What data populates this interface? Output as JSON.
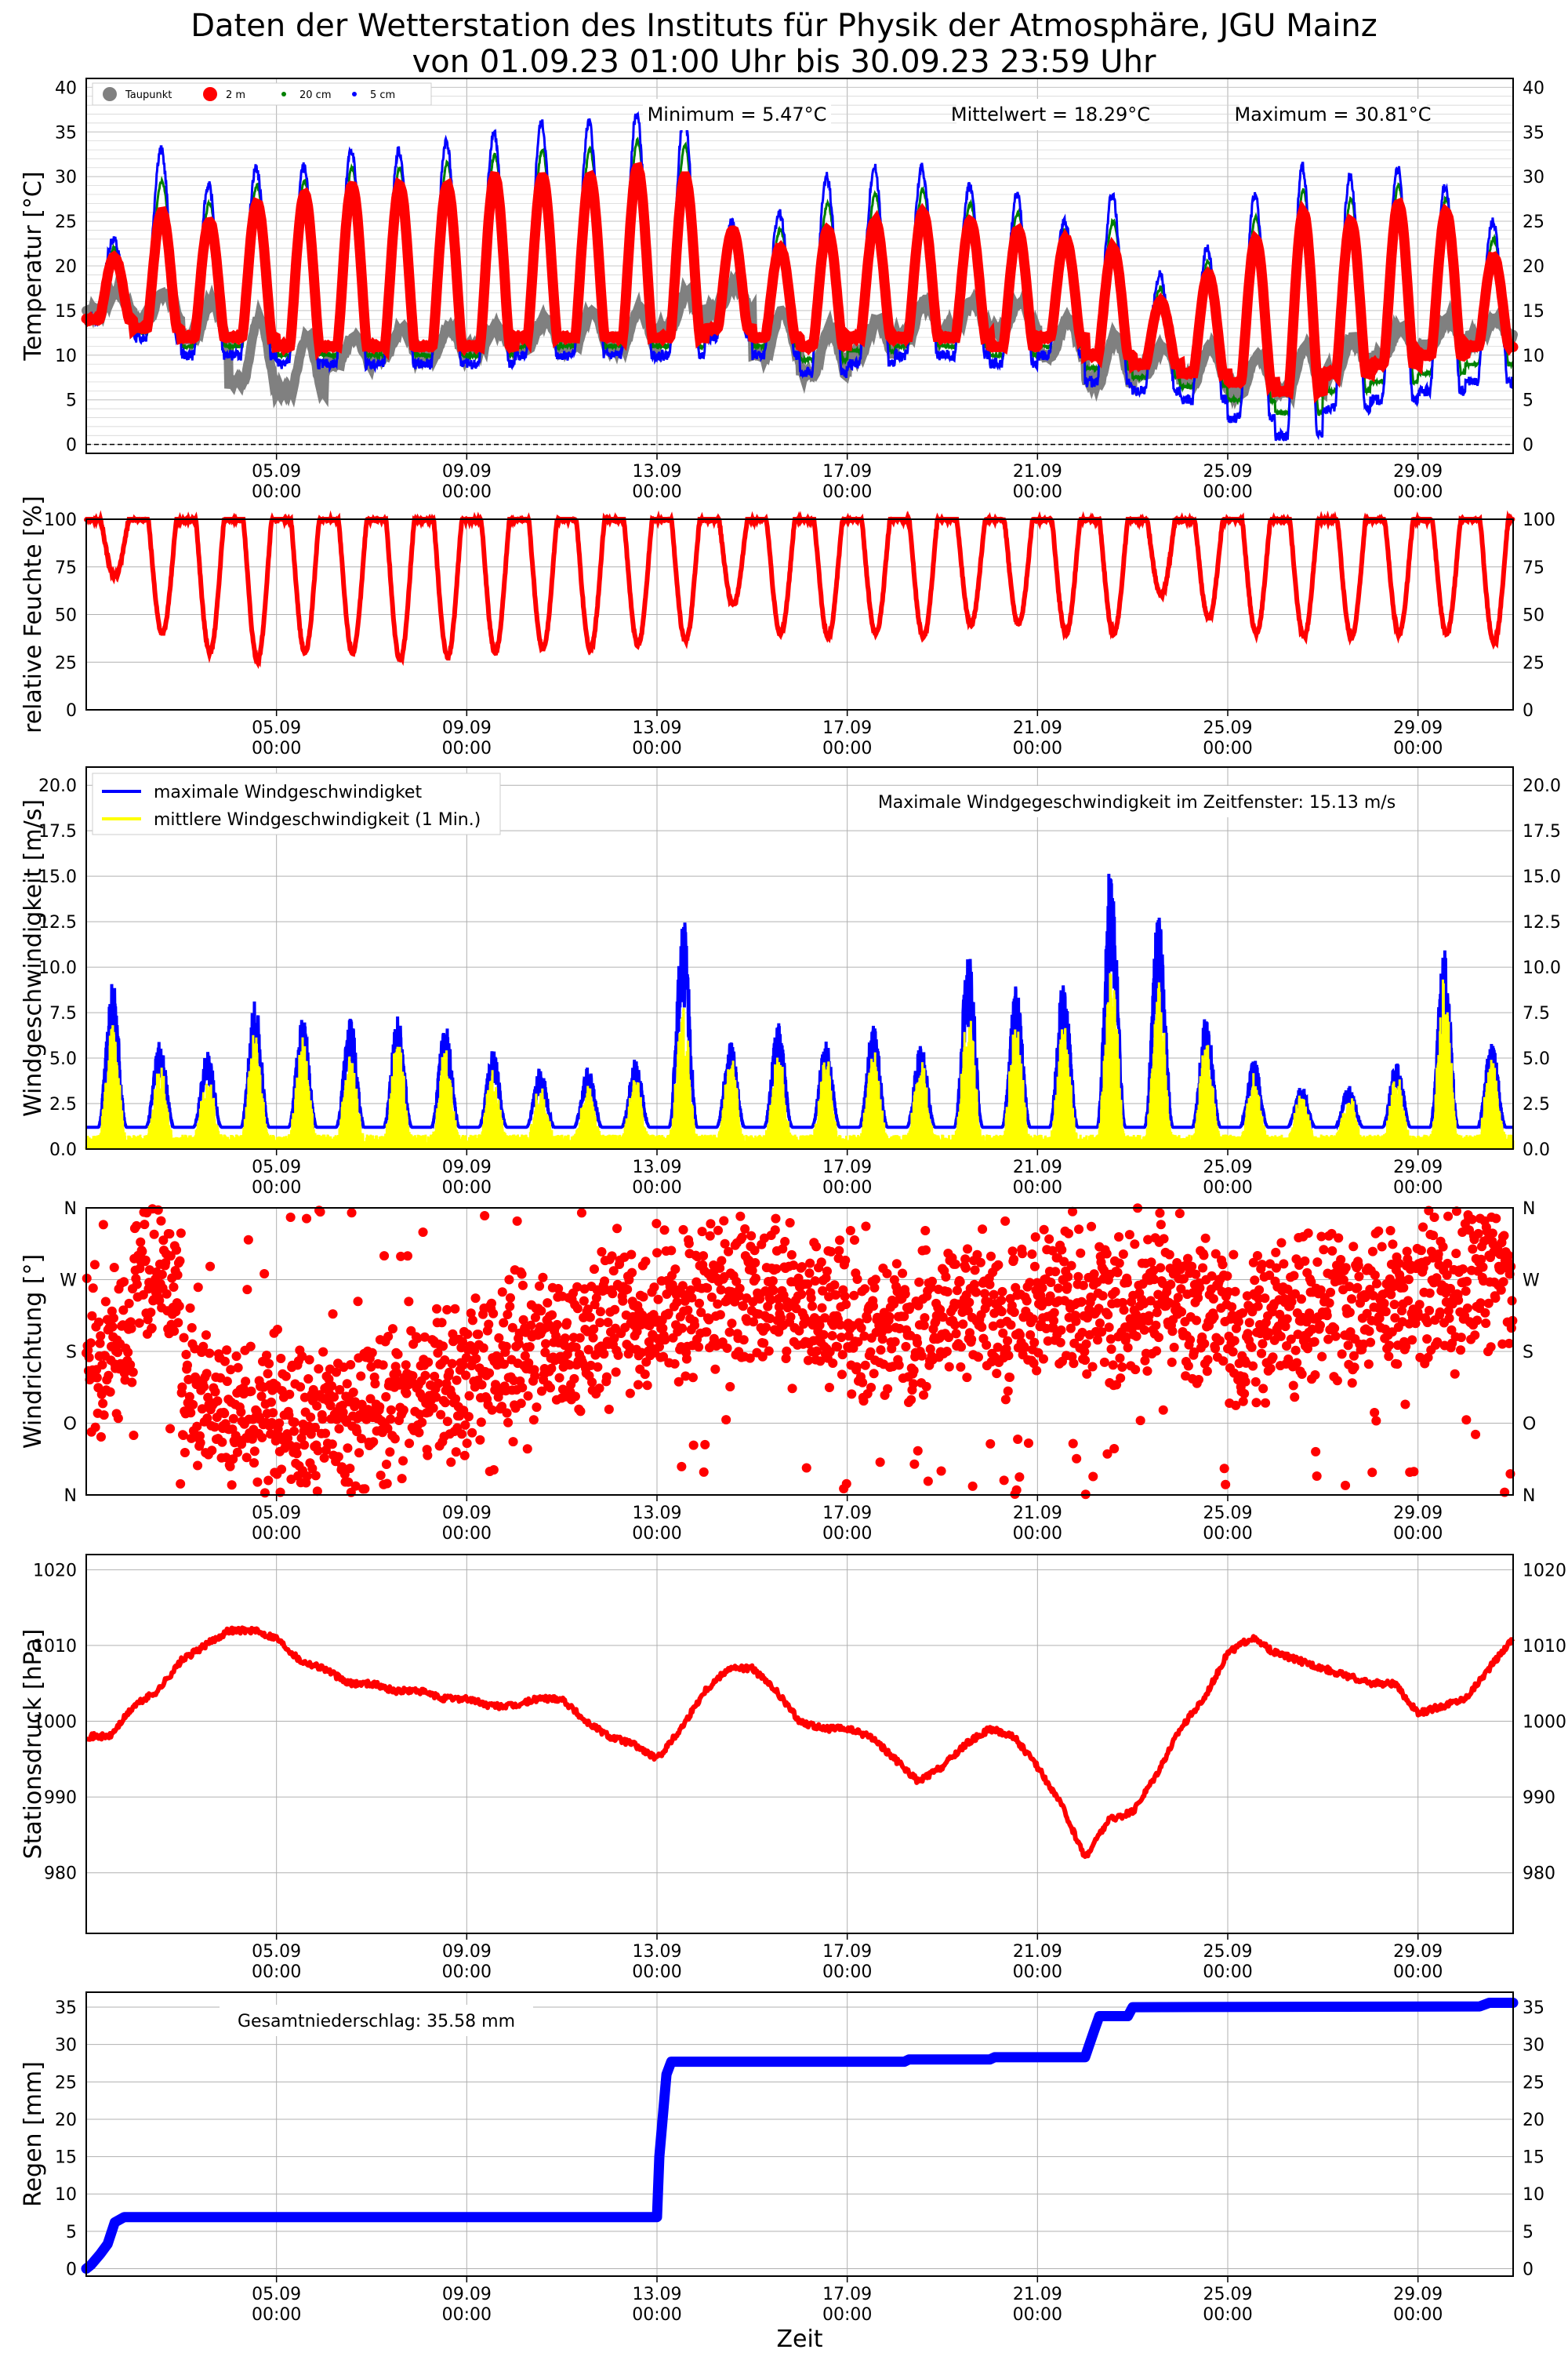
{
  "title_line1": "Daten der Wetterstation des Instituts für Physik der Atmosphäre, JGU Mainz",
  "title_line2": "von 01.09.23 01:00 Uhr bis 30.09.23 23:59 Uhr",
  "xlabel": "Zeit",
  "date_ticks": [
    {
      "date": "05.09",
      "time": "00:00",
      "day": 4.0
    },
    {
      "date": "09.09",
      "time": "00:00",
      "day": 8.0
    },
    {
      "date": "13.09",
      "time": "00:00",
      "day": 12.0
    },
    {
      "date": "17.09",
      "time": "00:00",
      "day": 16.0
    },
    {
      "date": "21.09",
      "time": "00:00",
      "day": 20.0
    },
    {
      "date": "25.09",
      "time": "00:00",
      "day": 24.0
    },
    {
      "date": "29.09",
      "time": "00:00",
      "day": 28.0
    }
  ],
  "colors": {
    "dewpoint": "#808080",
    "t2m": "#ff0000",
    "t20cm": "#008000",
    "t5cm": "#0000ff",
    "wind_max": "#0000ff",
    "wind_mean": "#ffff00",
    "rh": "#ff0000",
    "dir": "#ff0000",
    "pressure": "#ff0000",
    "rain": "#0000ff",
    "grid": "#b0b0b0"
  },
  "chart_data": [
    {
      "type": "line",
      "ylabel": "Temperatur [°C]",
      "ylim": [
        -1,
        41
      ],
      "yticks": [
        "0",
        "5",
        "10",
        "15",
        "20",
        "25",
        "30",
        "35",
        "40"
      ],
      "legend": [
        "Taupunkt",
        "2 m",
        "20 cm",
        "5 cm"
      ],
      "annotations": [
        "Minimum = 5.47°C",
        "Mittelwert = 18.29°C",
        "Maximum = 30.81°C"
      ],
      "series": [
        {
          "name": "2 m",
          "daily_min": [
            14,
            13,
            12,
            12,
            11,
            11,
            11,
            11,
            11,
            12,
            12,
            12,
            12,
            13,
            12,
            11,
            12,
            12,
            12,
            11,
            12,
            10,
            9,
            8,
            7,
            6,
            8,
            9,
            10,
            11
          ],
          "daily_max": [
            21,
            26,
            25,
            27,
            28,
            29,
            29,
            29,
            30,
            30,
            30,
            31,
            30,
            24,
            22,
            24,
            25,
            26,
            25,
            24,
            23,
            22,
            16,
            19,
            23,
            26,
            25,
            27,
            26,
            21
          ]
        },
        {
          "name": "5 cm",
          "daily_min": [
            14,
            12,
            10,
            10,
            9,
            9,
            9,
            9,
            9,
            10,
            10,
            10,
            10,
            12,
            10,
            8,
            9,
            10,
            10,
            9,
            10,
            7,
            6,
            5,
            3,
            1,
            4,
            5,
            6,
            7
          ],
          "daily_max": [
            23,
            33,
            29,
            31,
            31,
            33,
            33,
            34,
            35,
            36,
            36,
            37,
            37,
            25,
            26,
            30,
            31,
            31,
            29,
            28,
            25,
            28,
            19,
            22,
            28,
            31,
            30,
            31,
            29,
            25
          ]
        },
        {
          "name": "Taupunkt",
          "daily_min": [
            15,
            14,
            12,
            7,
            6,
            9,
            10,
            10,
            11,
            11,
            11,
            11,
            13,
            15,
            10,
            8,
            10,
            12,
            13,
            13,
            10,
            7,
            8,
            7,
            6,
            6,
            8,
            10,
            11,
            12
          ],
          "daily_max": [
            17,
            17,
            16,
            14,
            12,
            12,
            13,
            13,
            13,
            14,
            15,
            15,
            17,
            18,
            15,
            13,
            14,
            16,
            16,
            16,
            14,
            12,
            11,
            11,
            10,
            11,
            12,
            13,
            14,
            14
          ]
        }
      ]
    },
    {
      "type": "line",
      "ylabel": "relative Feuchte [%]",
      "ylim": [
        0,
        100
      ],
      "yticks": [
        "0",
        "25",
        "50",
        "75",
        "100"
      ],
      "series": [
        {
          "name": "",
          "daily_min": [
            70,
            40,
            30,
            26,
            30,
            30,
            26,
            28,
            30,
            32,
            32,
            34,
            36,
            55,
            40,
            38,
            40,
            38,
            45,
            45,
            40,
            40,
            60,
            48,
            40,
            38,
            38,
            40,
            40,
            35
          ],
          "daily_max": [
            100,
            100,
            100,
            100,
            100,
            100,
            100,
            100,
            100,
            100,
            100,
            100,
            100,
            100,
            100,
            100,
            100,
            100,
            100,
            100,
            100,
            100,
            100,
            100,
            100,
            100,
            100,
            100,
            100,
            100
          ]
        }
      ]
    },
    {
      "type": "line",
      "ylabel": "Windgeschwindigkeit [m/s]",
      "ylim": [
        0,
        21
      ],
      "yticks": [
        "0.0",
        "2.5",
        "5.0",
        "7.5",
        "10.0",
        "12.5",
        "15.0",
        "17.5",
        "20.0"
      ],
      "legend": [
        "maximale Windgeschwindigket",
        "mittlere Windgeschwindigkeit (1 Min.)"
      ],
      "annotation": "Maximale Windgegeschwindigkeit im Zeitfenster: 15.13 m/s",
      "series": [
        {
          "name": "maximale Windgeschwindigket",
          "daily_peak": [
            9.3,
            6.0,
            5.5,
            8.2,
            7.3,
            7.3,
            7.3,
            7.0,
            5.5,
            4.5,
            4.5,
            5.0,
            12.9,
            6.0,
            7.0,
            6.0,
            7.0,
            6.0,
            11.0,
            9.0,
            9.5,
            15.13,
            13.4,
            7.5,
            5.0,
            3.5,
            3.5,
            5.0,
            11.0,
            6.0
          ]
        },
        {
          "name": "mittlere Windgeschwindigkeit (1 Min.)",
          "daily_peak": [
            6.5,
            4.0,
            3.5,
            6.0,
            5.5,
            5.0,
            5.5,
            5.0,
            3.8,
            3.0,
            3.0,
            3.5,
            7.5,
            4.5,
            5.0,
            4.5,
            5.0,
            4.5,
            7.5,
            6.5,
            6.5,
            10.0,
            8.5,
            5.5,
            3.5,
            2.5,
            2.5,
            3.5,
            9.0,
            4.5
          ]
        }
      ]
    },
    {
      "type": "scatter",
      "ylabel": "Windrichtung [°]",
      "ylim": [
        0,
        360
      ],
      "yticks": [
        "N",
        "O",
        "S",
        "W",
        "N"
      ],
      "series": [
        {
          "name": "",
          "daily_direction": [
            180,
            270,
            120,
            100,
            80,
            90,
            110,
            140,
            160,
            190,
            200,
            220,
            230,
            250,
            240,
            230,
            200,
            210,
            240,
            220,
            250,
            230,
            250,
            240,
            210,
            230,
            240,
            250,
            260,
            280
          ]
        }
      ]
    },
    {
      "type": "line",
      "ylabel": "Stationsdruck [hPa]",
      "ylim": [
        972,
        1022
      ],
      "yticks": [
        "980",
        "990",
        "1000",
        "1010",
        "1020"
      ],
      "series": [
        {
          "name": "",
          "x": [
            0,
            0.5,
            1,
            1.5,
            2,
            2.5,
            3,
            3.5,
            4,
            4.5,
            5,
            5.5,
            6,
            6.5,
            7,
            7.5,
            8,
            8.5,
            9,
            9.5,
            10,
            10.5,
            11,
            11.5,
            12,
            12.5,
            13,
            13.5,
            14,
            14.5,
            15,
            15.5,
            16,
            16.5,
            17,
            17.5,
            18,
            18.5,
            19,
            19.5,
            20,
            20.5,
            21,
            21.5,
            22,
            22.5,
            23,
            23.5,
            24,
            24.5,
            25,
            25.5,
            26,
            26.5,
            27,
            27.5,
            28,
            28.5,
            29,
            29.5,
            30
          ],
          "y": [
            998,
            998,
            1002,
            1004,
            1008,
            1010,
            1012,
            1012,
            1011,
            1008,
            1007,
            1005,
            1005,
            1004,
            1004,
            1003,
            1003,
            1002,
            1002,
            1003,
            1003,
            1000,
            998,
            997,
            995,
            999,
            1004,
            1007,
            1007,
            1004,
            1000,
            999,
            999,
            998,
            995,
            992,
            994,
            997,
            999,
            998,
            994,
            989,
            982,
            987,
            988,
            993,
            999,
            1003,
            1009,
            1011,
            1009,
            1008,
            1007,
            1006,
            1005,
            1005,
            1001,
            1002,
            1003,
            1007,
            1011
          ]
        }
      ]
    },
    {
      "type": "line",
      "ylabel": "Regen [mm]",
      "ylim": [
        -1,
        37
      ],
      "yticks": [
        "0",
        "5",
        "10",
        "15",
        "20",
        "25",
        "30",
        "35"
      ],
      "annotation": "Gesamtniederschlag: 35.58 mm",
      "series": [
        {
          "name": "",
          "x": [
            0,
            0.1,
            0.3,
            0.45,
            0.6,
            0.8,
            12.0,
            12.05,
            12.2,
            12.3,
            17.2,
            17.3,
            19.0,
            19.1,
            21.0,
            21.2,
            21.3,
            21.9,
            22.0,
            29.3,
            29.5,
            30.0
          ],
          "y": [
            0,
            0.5,
            2.0,
            3.3,
            6.2,
            6.9,
            6.9,
            15.0,
            26.0,
            27.7,
            27.7,
            28.0,
            28.0,
            28.3,
            28.3,
            32.0,
            33.8,
            33.8,
            35.0,
            35.1,
            35.58,
            35.58
          ]
        }
      ]
    }
  ]
}
